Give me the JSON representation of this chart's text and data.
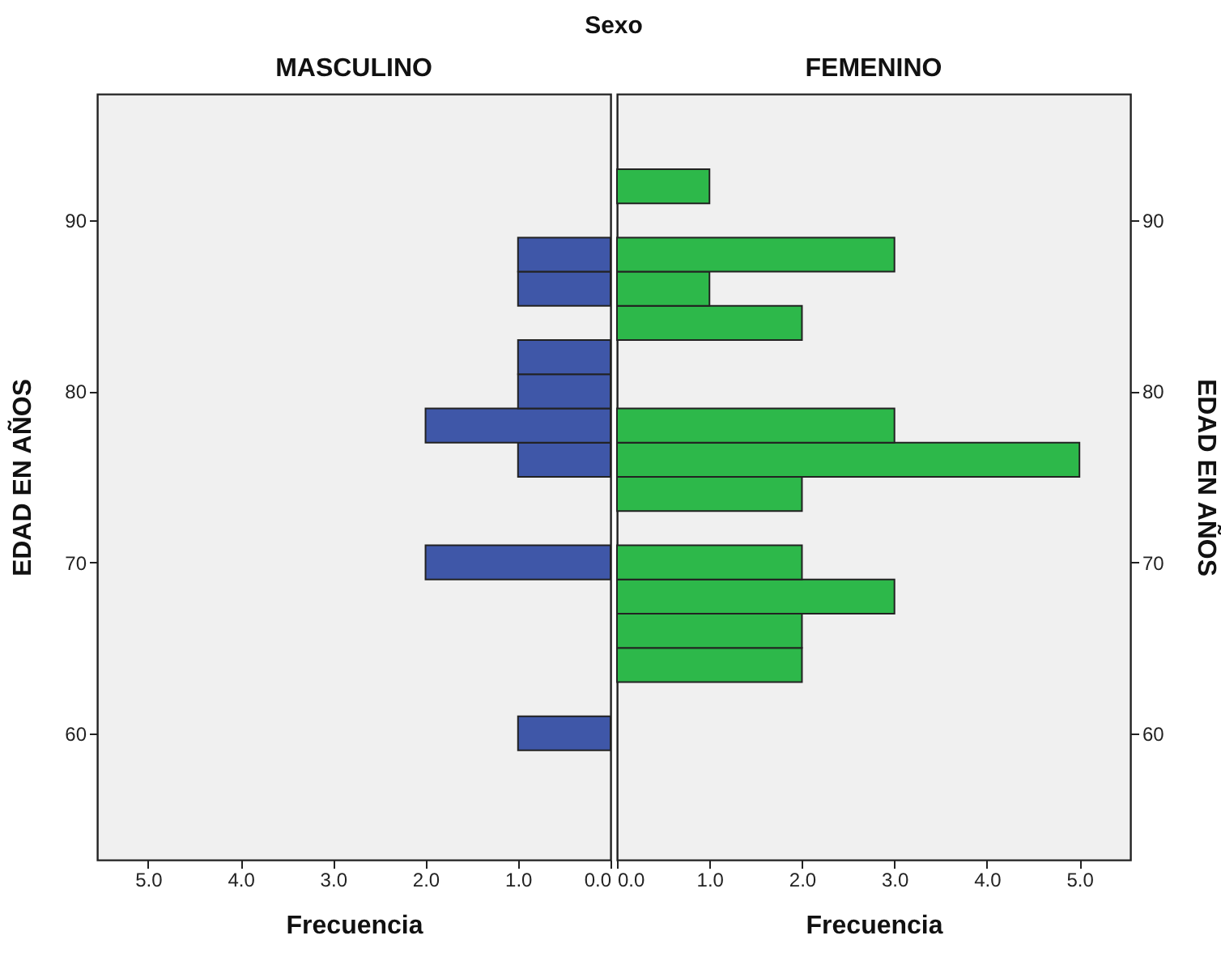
{
  "chart_data": [
    {
      "type": "histogram",
      "orientation": "horizontal",
      "title": "MASCULINO",
      "xlabel": "Frecuencia",
      "ylabel": "EDAD EN AÑOS",
      "annotations": [
        "Sexo"
      ],
      "bins": [
        59,
        61,
        63,
        65,
        67,
        69,
        71,
        73,
        75,
        77,
        79,
        81,
        83,
        85,
        87,
        89,
        91,
        93
      ],
      "values": [
        1,
        0,
        0,
        0,
        0,
        2,
        0,
        0,
        1,
        2,
        1,
        1,
        0,
        1,
        1,
        0,
        0
      ],
      "color": "#3f57a8",
      "xlim": [
        5.55,
        0
      ],
      "xticks": [
        {
          "value": 5,
          "label": "5.0"
        },
        {
          "value": 4,
          "label": "4.0"
        },
        {
          "value": 3,
          "label": "3.0"
        },
        {
          "value": 2,
          "label": "2.0"
        },
        {
          "value": 1,
          "label": "1.0"
        },
        {
          "value": 0,
          "label": "0.0"
        }
      ],
      "ylim": [
        52.6,
        97.4
      ],
      "yticks": [
        60,
        70,
        80,
        90
      ],
      "grid": false
    },
    {
      "type": "histogram",
      "orientation": "horizontal",
      "title": "FEMENINO",
      "xlabel": "Frecuencia",
      "ylabel": "EDAD EN AÑOS",
      "bins": [
        59,
        61,
        63,
        65,
        67,
        69,
        71,
        73,
        75,
        77,
        79,
        81,
        83,
        85,
        87,
        89,
        91,
        93
      ],
      "values": [
        0,
        0,
        2,
        2,
        3,
        2,
        0,
        2,
        5,
        3,
        0,
        0,
        2,
        1,
        3,
        0,
        1
      ],
      "color": "#2db84a",
      "xlim": [
        0,
        5.55
      ],
      "xticks": [
        {
          "value": 0,
          "label": "0.0"
        },
        {
          "value": 1,
          "label": "1.0"
        },
        {
          "value": 2,
          "label": "2.0"
        },
        {
          "value": 3,
          "label": "3.0"
        },
        {
          "value": 4,
          "label": "4.0"
        },
        {
          "value": 5,
          "label": "5.0"
        }
      ],
      "ylim": [
        52.6,
        97.4
      ],
      "yticks": [
        60,
        70,
        80,
        90
      ],
      "grid": false
    }
  ]
}
